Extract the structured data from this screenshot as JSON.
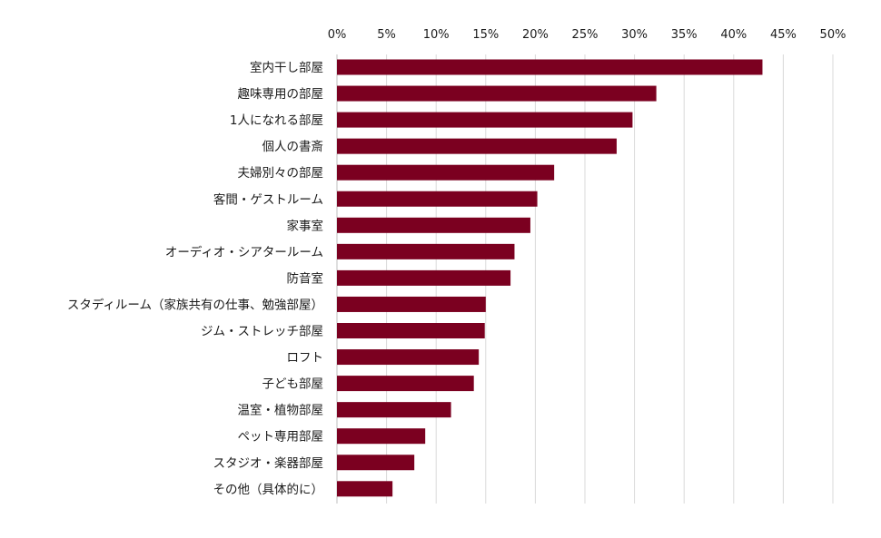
{
  "chart_data": {
    "type": "bar",
    "orientation": "horizontal",
    "categories": [
      "室内干し部屋",
      "趣味専用の部屋",
      "1人になれる部屋",
      "個人の書斎",
      "夫婦別々の部屋",
      "客間・ゲストルーム",
      "家事室",
      "オーディオ・シアタールーム",
      "防音室",
      "スタディルーム（家族共有の仕事、勉強部屋）",
      "ジム・ストレッチ部屋",
      "ロフト",
      "子ども部屋",
      "温室・植物部屋",
      "ペット専用部屋",
      "スタジオ・楽器部屋",
      "その他（具体的に）"
    ],
    "values": [
      42.9,
      32.2,
      29.8,
      28.2,
      21.9,
      20.2,
      19.5,
      17.9,
      17.5,
      15.0,
      14.9,
      14.3,
      13.8,
      11.5,
      8.9,
      7.8,
      5.6
    ],
    "xlim": [
      0,
      50
    ],
    "ticks": [
      "0%",
      "5%",
      "10%",
      "15%",
      "20%",
      "25%",
      "30%",
      "35%",
      "40%",
      "45%",
      "50%"
    ],
    "tick_values": [
      0,
      5,
      10,
      15,
      20,
      25,
      30,
      35,
      40,
      45,
      50
    ],
    "axis_position": "top",
    "grid": true,
    "bar_color": "#7b0020",
    "grid_color": "#d9d9d9"
  }
}
